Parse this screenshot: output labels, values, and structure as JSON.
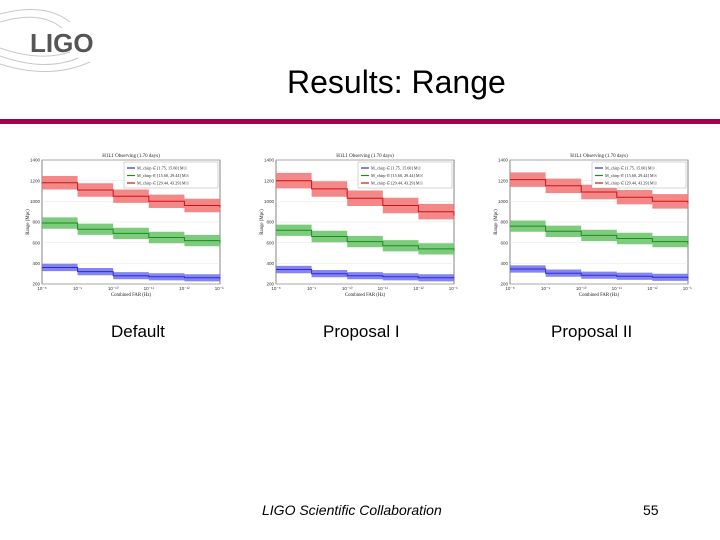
{
  "logo": {
    "text": "LIGO"
  },
  "slide": {
    "title": "Results: Range",
    "footer": "LIGO Scientific Collaboration",
    "page_number": "55"
  },
  "panels": [
    {
      "caption": "Default",
      "plot_title": "H1L1 Observing (1.70 days)",
      "xlabel": "Combined FAR (Hz)",
      "ylabel": "Range (Mpc)"
    },
    {
      "caption": "Proposal I",
      "plot_title": "H1L1 Observing (1.70 days)",
      "xlabel": "Combined FAR (Hz)",
      "ylabel": "Range (Mpc)"
    },
    {
      "caption": "Proposal II",
      "plot_title": "H1L1 Observing (1.70 days)",
      "xlabel": "Combined FAR (Hz)",
      "ylabel": "Range (Mpc)"
    }
  ],
  "chart_data": [
    {
      "type": "area",
      "title": "H1L1 Observing (1.70 days)",
      "xlabel": "Combined FAR (Hz)",
      "ylabel": "Range (Mpc)",
      "x_log": true,
      "xlim": [
        1e-08,
        1e-13
      ],
      "ylim": [
        200,
        1400
      ],
      "yticks": [
        "200",
        "400",
        "600",
        "800",
        "1000",
        "1200",
        "1400"
      ],
      "xticks": [
        "10⁻⁸",
        "10⁻⁹",
        "10⁻¹⁰",
        "10⁻¹¹",
        "10⁻¹²",
        "10⁻¹³"
      ],
      "legend_position": "top-right",
      "series": [
        {
          "name": "M_chirp ∈ [1.75, 15.60] M☉",
          "color": "#2b2bd6",
          "band": "#7070ee",
          "x": [
            1e-08,
            1e-09,
            1e-10,
            1e-11,
            1e-12,
            1e-13
          ],
          "values": [
            360,
            320,
            280,
            270,
            260,
            250
          ],
          "band_halfwidth": 35
        },
        {
          "name": "M_chirp ∈ [15.60, 29.44] M☉",
          "color": "#1e8a1e",
          "band": "#66c266",
          "x": [
            1e-08,
            1e-09,
            1e-10,
            1e-11,
            1e-12,
            1e-13
          ],
          "values": [
            790,
            730,
            690,
            650,
            620,
            600
          ],
          "band_halfwidth": 55
        },
        {
          "name": "M_chirp ∈ [29.44, 43.29] M☉",
          "color": "#c91414",
          "band": "#f27272",
          "x": [
            1e-08,
            1e-09,
            1e-10,
            1e-11,
            1e-12,
            1e-13
          ],
          "values": [
            1180,
            1110,
            1050,
            1000,
            960,
            940
          ],
          "band_halfwidth": 65
        }
      ]
    },
    {
      "type": "area",
      "title": "H1L1 Observing (1.70 days)",
      "xlabel": "Combined FAR (Hz)",
      "ylabel": "Range (Mpc)",
      "x_log": true,
      "xlim": [
        1e-08,
        1e-13
      ],
      "ylim": [
        200,
        1400
      ],
      "yticks": [
        "200",
        "400",
        "600",
        "800",
        "1000",
        "1200",
        "1400"
      ],
      "xticks": [
        "10⁻⁸",
        "10⁻⁹",
        "10⁻¹⁰",
        "10⁻¹¹",
        "10⁻¹²",
        "10⁻¹³"
      ],
      "legend_position": "top-right",
      "series": [
        {
          "name": "M_chirp ∈ [1.75, 15.60] M☉",
          "color": "#2b2bd6",
          "band": "#7070ee",
          "x": [
            1e-08,
            1e-09,
            1e-10,
            1e-11,
            1e-12,
            1e-13
          ],
          "values": [
            340,
            300,
            280,
            270,
            260,
            255
          ],
          "band_halfwidth": 35
        },
        {
          "name": "M_chirp ∈ [15.60, 29.44] M☉",
          "color": "#1e8a1e",
          "band": "#66c266",
          "x": [
            1e-08,
            1e-09,
            1e-10,
            1e-11,
            1e-12,
            1e-13
          ],
          "values": [
            720,
            660,
            610,
            570,
            540,
            520
          ],
          "band_halfwidth": 55
        },
        {
          "name": "M_chirp ∈ [29.44, 43.29] M☉",
          "color": "#c91414",
          "band": "#f27272",
          "x": [
            1e-08,
            1e-09,
            1e-10,
            1e-11,
            1e-12,
            1e-13
          ],
          "values": [
            1200,
            1120,
            1030,
            960,
            900,
            860
          ],
          "band_halfwidth": 75
        }
      ]
    },
    {
      "type": "area",
      "title": "H1L1 Observing (1.70 days)",
      "xlabel": "Combined FAR (Hz)",
      "ylabel": "Range (Mpc)",
      "x_log": true,
      "xlim": [
        1e-08,
        1e-13
      ],
      "ylim": [
        200,
        1400
      ],
      "yticks": [
        "200",
        "400",
        "600",
        "800",
        "1000",
        "1200",
        "1400"
      ],
      "xticks": [
        "10⁻⁸",
        "10⁻⁹",
        "10⁻¹⁰",
        "10⁻¹¹",
        "10⁻¹²",
        "10⁻¹³"
      ],
      "legend_position": "top-right",
      "series": [
        {
          "name": "M_chirp ∈ [1.75, 15.60] M☉",
          "color": "#2b2bd6",
          "band": "#7070ee",
          "x": [
            1e-08,
            1e-09,
            1e-10,
            1e-11,
            1e-12,
            1e-13
          ],
          "values": [
            345,
            305,
            285,
            275,
            265,
            255
          ],
          "band_halfwidth": 35
        },
        {
          "name": "M_chirp ∈ [15.60, 29.44] M☉",
          "color": "#1e8a1e",
          "band": "#66c266",
          "x": [
            1e-08,
            1e-09,
            1e-10,
            1e-11,
            1e-12,
            1e-13
          ],
          "values": [
            760,
            710,
            670,
            640,
            610,
            590
          ],
          "band_halfwidth": 55
        },
        {
          "name": "M_chirp ∈ [29.44, 43.29] M☉",
          "color": "#c91414",
          "band": "#f27272",
          "x": [
            1e-08,
            1e-09,
            1e-10,
            1e-11,
            1e-12,
            1e-13
          ],
          "values": [
            1210,
            1150,
            1090,
            1040,
            1000,
            980
          ],
          "band_halfwidth": 70
        }
      ]
    }
  ]
}
